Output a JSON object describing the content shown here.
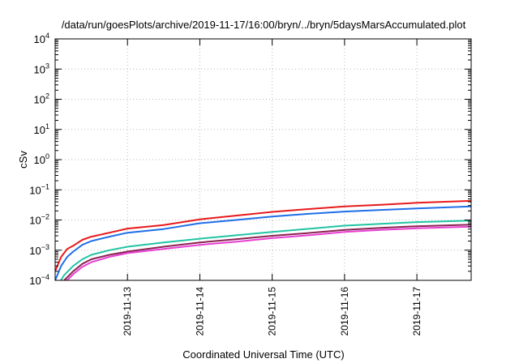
{
  "chart_data": {
    "type": "line",
    "title": "/data/run/goesPlots/archive/2019-11-17/16:00/bryn/../bryn/5daysMarsAccumulated.plot",
    "xlabel": "Coordinated Universal Time (UTC)",
    "ylabel": "cSv",
    "yscale": "log",
    "ylim": [
      0.0001,
      10000
    ],
    "xlim": [
      "2019-11-12T00:00",
      "2019-11-17T18:00"
    ],
    "grid": true,
    "legend": "none",
    "y_ticks": [
      {
        "base": "10",
        "exp": "-4"
      },
      {
        "base": "10",
        "exp": "-3"
      },
      {
        "base": "10",
        "exp": "-2"
      },
      {
        "base": "10",
        "exp": "-1"
      },
      {
        "base": "10",
        "exp": "0"
      },
      {
        "base": "10",
        "exp": "1"
      },
      {
        "base": "10",
        "exp": "2"
      },
      {
        "base": "10",
        "exp": "3"
      },
      {
        "base": "10",
        "exp": "4"
      }
    ],
    "x_ticks": [
      "2019-11-13",
      "2019-11-14",
      "2019-11-15",
      "2019-11-16",
      "2019-11-17"
    ],
    "series": [
      {
        "color": "#e8191b",
        "x": [
          "2019-11-12T00:00",
          "2019-11-12T02:00",
          "2019-11-12T04:00",
          "2019-11-12T06:00",
          "2019-11-12T09:00",
          "2019-11-12T12:00",
          "2019-11-12T18:00",
          "2019-11-13T00:00",
          "2019-11-13T12:00",
          "2019-11-14T00:00",
          "2019-11-14T12:00",
          "2019-11-15T00:00",
          "2019-11-15T12:00",
          "2019-11-16T00:00",
          "2019-11-16T12:00",
          "2019-11-17T00:00",
          "2019-11-17T18:00"
        ],
        "y": [
          0.0002,
          0.0006,
          0.0011,
          0.0014,
          0.0022,
          0.0028,
          0.0038,
          0.0052,
          0.0068,
          0.0105,
          0.014,
          0.0185,
          0.023,
          0.028,
          0.032,
          0.037,
          0.043
        ]
      },
      {
        "color": "#1f6ee8",
        "x": [
          "2019-11-12T00:00",
          "2019-11-12T02:00",
          "2019-11-12T04:00",
          "2019-11-12T06:00",
          "2019-11-12T09:00",
          "2019-11-12T12:00",
          "2019-11-12T18:00",
          "2019-11-13T00:00",
          "2019-11-13T12:00",
          "2019-11-14T00:00",
          "2019-11-14T12:00",
          "2019-11-15T00:00",
          "2019-11-15T12:00",
          "2019-11-16T00:00",
          "2019-11-16T12:00",
          "2019-11-17T00:00",
          "2019-11-17T18:00"
        ],
        "y": [
          0.0001,
          0.0003,
          0.0006,
          0.0009,
          0.0015,
          0.002,
          0.0028,
          0.0038,
          0.005,
          0.0078,
          0.01,
          0.013,
          0.016,
          0.019,
          0.0215,
          0.024,
          0.028
        ]
      },
      {
        "color": "#22c4a3",
        "x": [
          "2019-11-12T00:00",
          "2019-11-12T03:00",
          "2019-11-12T06:00",
          "2019-11-12T09:00",
          "2019-11-12T12:00",
          "2019-11-12T18:00",
          "2019-11-13T00:00",
          "2019-11-13T12:00",
          "2019-11-14T00:00",
          "2019-11-14T12:00",
          "2019-11-15T00:00",
          "2019-11-15T12:00",
          "2019-11-16T00:00",
          "2019-11-16T12:00",
          "2019-11-17T00:00",
          "2019-11-17T18:00"
        ],
        "y": [
          5e-05,
          0.00015,
          0.0003,
          0.0005,
          0.0007,
          0.001,
          0.0013,
          0.0018,
          0.0024,
          0.0031,
          0.004,
          0.0051,
          0.0065,
          0.0075,
          0.0085,
          0.0095
        ]
      },
      {
        "color": "#8b2252",
        "x": [
          "2019-11-12T00:00",
          "2019-11-12T03:00",
          "2019-11-12T06:00",
          "2019-11-12T09:00",
          "2019-11-12T12:00",
          "2019-11-12T18:00",
          "2019-11-13T00:00",
          "2019-11-13T12:00",
          "2019-11-14T00:00",
          "2019-11-14T12:00",
          "2019-11-15T00:00",
          "2019-11-15T12:00",
          "2019-11-16T00:00",
          "2019-11-16T12:00",
          "2019-11-17T00:00",
          "2019-11-17T18:00"
        ],
        "y": [
          4e-05,
          0.0001,
          0.0002,
          0.00035,
          0.0005,
          0.0007,
          0.0009,
          0.0013,
          0.0018,
          0.0023,
          0.003,
          0.0037,
          0.0047,
          0.0055,
          0.0062,
          0.007
        ]
      },
      {
        "color": "#e83fd2",
        "x": [
          "2019-11-12T00:00",
          "2019-11-12T03:00",
          "2019-11-12T06:00",
          "2019-11-12T09:00",
          "2019-11-12T12:00",
          "2019-11-12T18:00",
          "2019-11-13T00:00",
          "2019-11-13T12:00",
          "2019-11-14T00:00",
          "2019-11-14T12:00",
          "2019-11-15T00:00",
          "2019-11-15T12:00",
          "2019-11-16T00:00",
          "2019-11-16T12:00",
          "2019-11-17T00:00",
          "2019-11-17T18:00"
        ],
        "y": [
          3e-05,
          8e-05,
          0.00016,
          0.00028,
          0.0004,
          0.0006,
          0.0008,
          0.0011,
          0.0015,
          0.0019,
          0.0025,
          0.0031,
          0.004,
          0.0047,
          0.0053,
          0.006
        ]
      }
    ]
  }
}
